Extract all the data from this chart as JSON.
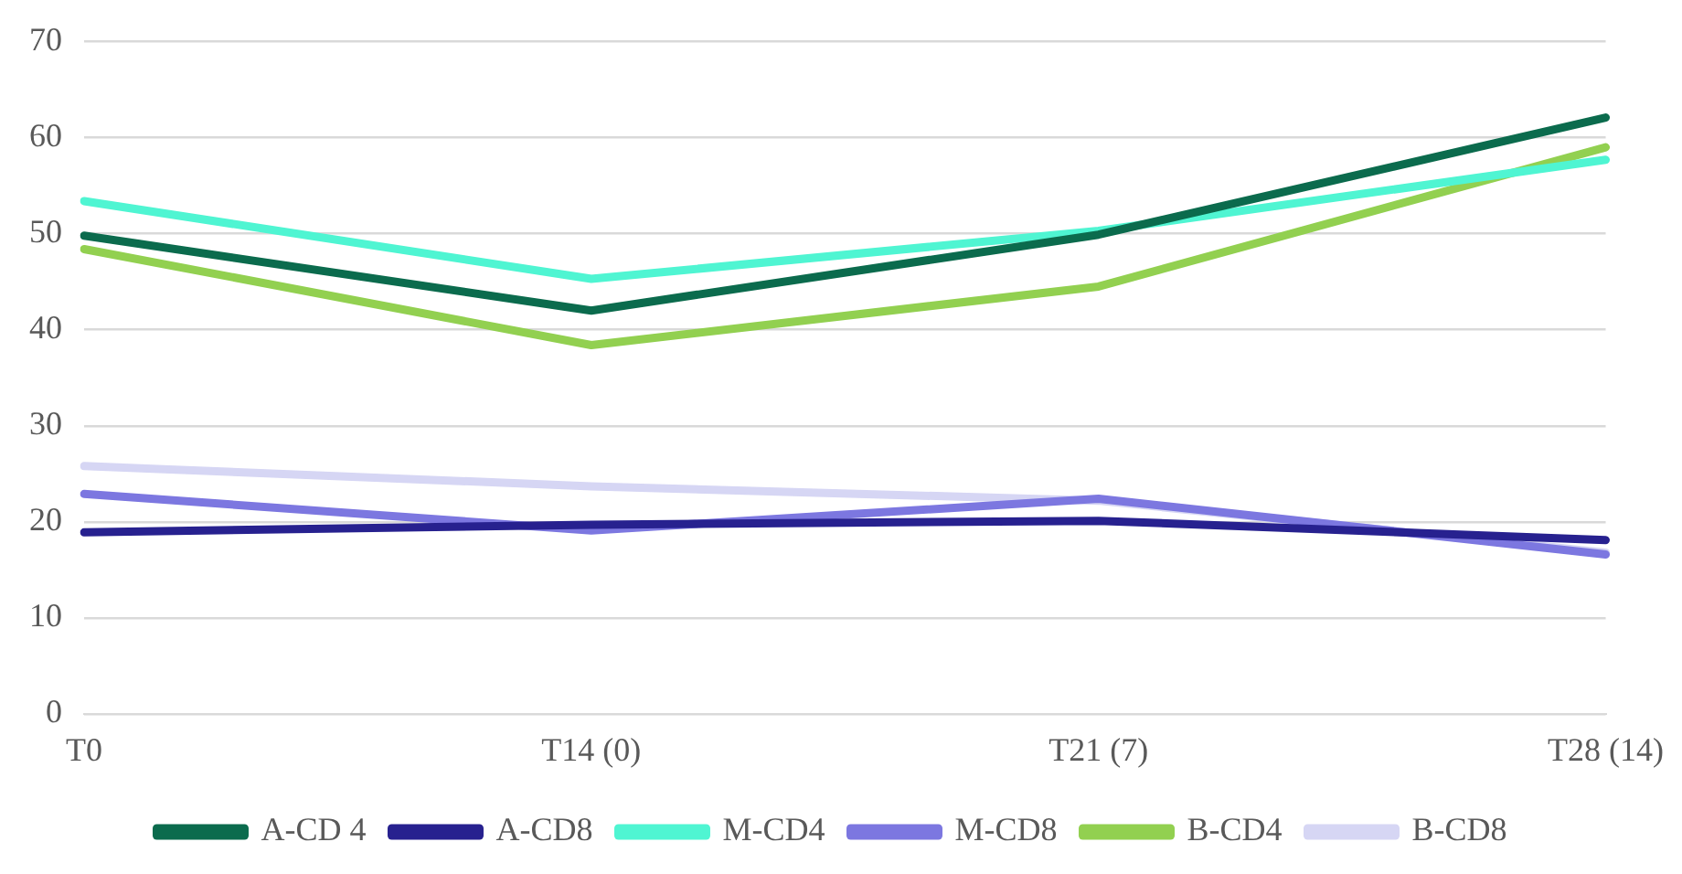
{
  "chart_data": {
    "type": "line",
    "categories": [
      "T0",
      "T14 (0)",
      "T21 (7)",
      "T28 (14)"
    ],
    "series": [
      {
        "name": "A-CD 4",
        "color": "#0b6b4d",
        "values": [
          49.8,
          42.0,
          49.9,
          62.1
        ]
      },
      {
        "name": "A-CD8",
        "color": "#27218f",
        "values": [
          18.9,
          19.7,
          20.1,
          18.1
        ]
      },
      {
        "name": "M-CD4",
        "color": "#4ff5d2",
        "values": [
          53.4,
          45.3,
          50.3,
          57.7
        ]
      },
      {
        "name": "M-CD8",
        "color": "#7c77e0",
        "values": [
          22.9,
          19.1,
          22.4,
          16.6
        ]
      },
      {
        "name": "B-CD4",
        "color": "#92d050",
        "values": [
          48.4,
          38.4,
          44.5,
          59.0
        ]
      },
      {
        "name": "B-CD8",
        "color": "#d6d6f4",
        "values": [
          25.8,
          23.7,
          22.2,
          16.8
        ]
      }
    ],
    "ylim": [
      0,
      70
    ],
    "yticks": [
      0,
      10,
      20,
      30,
      40,
      50,
      60,
      70
    ],
    "grid": "y",
    "legend": "bottom",
    "marker": "none",
    "line_style": "solid"
  }
}
